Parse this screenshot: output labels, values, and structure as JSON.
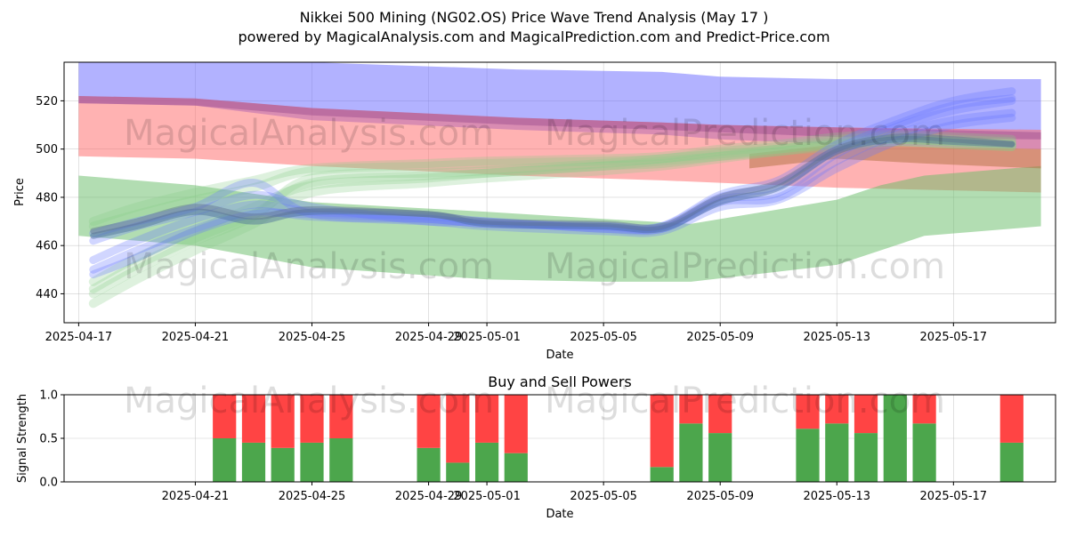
{
  "title_line1": "Nikkei 500 Mining (NG02.OS) Price Wave Trend Analysis (May 17 )",
  "title_line2": "powered by MagicalAnalysis.com and MagicalPrediction.com and Predict-Price.com",
  "watermarks": [
    "MagicalAnalysis.com",
    "MagicalPrediction.com"
  ],
  "chart_data": [
    {
      "type": "area",
      "xlabel": "Date",
      "ylabel": "Price",
      "xlim": [
        -0.5,
        33.5
      ],
      "ylim": [
        428,
        536
      ],
      "x_tick_labels": [
        "2025-04-17",
        "2025-04-21",
        "2025-04-25",
        "2025-04-29",
        "2025-05-01",
        "2025-05-05",
        "2025-05-09",
        "2025-05-13",
        "2025-05-17"
      ],
      "x_tick_positions": [
        0,
        4,
        8,
        12,
        14,
        18,
        22,
        26,
        30
      ],
      "y_ticks": [
        440,
        460,
        480,
        500,
        520
      ],
      "grid": true,
      "bands": [
        {
          "name": "blue wide upper band",
          "color": "#6666ff",
          "x": [
            0,
            4,
            8,
            15,
            20,
            22,
            26,
            33
          ],
          "upper": [
            538,
            537,
            536,
            533,
            532,
            530,
            529,
            529
          ],
          "lower": [
            519,
            518,
            512,
            508,
            506,
            504,
            502,
            500
          ]
        },
        {
          "name": "red band",
          "color": "#ff6666",
          "x": [
            0,
            4,
            8,
            15,
            20,
            22,
            26,
            33
          ],
          "upper": [
            522,
            521,
            517,
            513,
            511,
            510,
            509,
            508
          ],
          "lower": [
            497,
            496,
            493,
            489,
            487,
            486,
            484,
            482
          ]
        },
        {
          "name": "purple band",
          "color": "#a05090",
          "x": [
            0,
            4,
            8,
            15,
            20,
            22,
            26,
            33
          ],
          "upper": [
            522,
            521,
            517,
            513,
            511,
            510,
            509,
            507
          ],
          "lower": [
            519,
            518,
            514,
            510,
            508,
            507,
            505,
            504
          ]
        },
        {
          "name": "green lower band",
          "color": "#66bb66",
          "x": [
            0,
            4,
            8,
            14,
            18,
            21,
            26,
            27.5,
            29,
            33
          ],
          "upper": [
            489,
            485,
            478,
            474,
            471,
            469,
            479,
            485,
            489,
            493
          ],
          "lower": [
            464,
            460,
            451,
            446,
            445,
            445,
            452,
            458,
            464,
            468
          ]
        },
        {
          "name": "brown late band",
          "color": "#b07040",
          "x": [
            23,
            26,
            29,
            33
          ],
          "upper": [
            498,
            502,
            501,
            500
          ],
          "lower": [
            492,
            496,
            494,
            492
          ]
        }
      ],
      "waves": {
        "blue_color": "#6677ff",
        "green_color": "#88cc88",
        "x": [
          0.5,
          2,
          4,
          6,
          8,
          12,
          14,
          18,
          20,
          22,
          24,
          26,
          28,
          30,
          32
        ],
        "blue_paths": [
          [
            454,
            462,
            471,
            477,
            474,
            472,
            470,
            467,
            467,
            478,
            480,
            495,
            506,
            512,
            515
          ],
          [
            450,
            458,
            467,
            474,
            472,
            470,
            468,
            466,
            466,
            476,
            479,
            492,
            503,
            510,
            513
          ],
          [
            465,
            470,
            476,
            486,
            473,
            471,
            469,
            468,
            468,
            480,
            485,
            500,
            510,
            518,
            521
          ],
          [
            448,
            455,
            466,
            473,
            473,
            471,
            469,
            468,
            467,
            479,
            482,
            498,
            509,
            516,
            520
          ],
          [
            462,
            468,
            474,
            481,
            476,
            470,
            470,
            467,
            468,
            481,
            487,
            502,
            512,
            520,
            524
          ]
        ],
        "green_paths": [
          [
            440,
            450,
            462,
            472,
            488,
            490,
            491,
            494,
            496,
            498,
            500,
            503,
            504,
            503,
            502
          ],
          [
            445,
            455,
            466,
            476,
            485,
            488,
            490,
            493,
            495,
            497,
            499,
            502,
            503,
            502,
            501
          ],
          [
            468,
            473,
            479,
            484,
            491,
            493,
            494,
            495,
            496,
            499,
            501,
            504,
            505,
            504,
            503
          ],
          [
            436,
            446,
            458,
            469,
            482,
            486,
            488,
            491,
            493,
            496,
            499,
            501,
            503,
            502,
            501
          ],
          [
            470,
            476,
            482,
            487,
            492,
            494,
            495,
            496,
            497,
            500,
            502,
            505,
            506,
            505,
            504
          ],
          [
            442,
            452,
            463,
            473,
            486,
            489,
            490,
            493,
            494,
            497,
            500,
            502,
            504,
            503,
            502
          ]
        ],
        "dark_paths": [
          {
            "color": "#4a6f9a",
            "values": [
              464,
              468,
              474,
              470,
              474,
              473,
              469,
              468,
              467,
              478,
              484,
              499,
              504,
              503,
              502
            ]
          },
          {
            "color": "#607090",
            "values": [
              466,
              470,
              476,
              472,
              475,
              473,
              470,
              469,
              468,
              480,
              486,
              500,
              505,
              504,
              502
            ]
          }
        ]
      }
    },
    {
      "type": "bar",
      "title": "Buy and Sell Powers",
      "xlabel": "Date",
      "ylabel": "Signal Strength",
      "ylim": [
        0,
        1.0
      ],
      "y_ticks": [
        "0.0",
        "0.5",
        "1.0"
      ],
      "x_tick_labels": [
        "2025-04-21",
        "2025-04-25",
        "2025-04-29",
        "2025-05-01",
        "2025-05-05",
        "2025-05-09",
        "2025-05-13",
        "2025-05-17"
      ],
      "x_tick_positions": [
        4,
        8,
        12,
        14,
        18,
        22,
        26,
        30
      ],
      "buy_color": "#4ca64c",
      "sell_color": "#ff4444",
      "days": [
        5,
        6,
        7,
        8,
        9,
        12,
        13,
        14,
        15,
        20,
        21,
        22,
        25,
        26,
        27,
        28,
        29,
        32
      ],
      "buy": [
        0.5,
        0.45,
        0.39,
        0.45,
        0.5,
        0.39,
        0.22,
        0.45,
        0.33,
        0.17,
        0.67,
        0.56,
        0.61,
        0.67,
        0.56,
        1.0,
        0.67,
        0.45
      ],
      "sell": [
        0.5,
        0.55,
        0.61,
        0.55,
        0.5,
        0.61,
        0.78,
        0.55,
        0.67,
        0.83,
        0.33,
        0.44,
        0.39,
        0.33,
        0.44,
        0.0,
        0.33,
        0.55
      ]
    }
  ]
}
